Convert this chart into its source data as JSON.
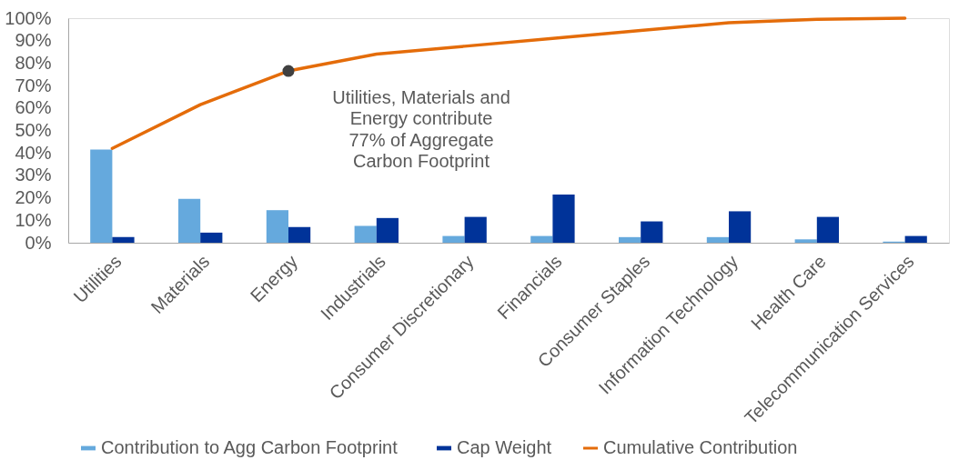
{
  "chart_data": {
    "type": "bar",
    "categories": [
      "Utilities",
      "Materials",
      "Energy",
      "Industrials",
      "Consumer Discretionary",
      "Financials",
      "Consumer Staples",
      "Information Technology",
      "Health Care",
      "Telecommunication Services"
    ],
    "series": [
      {
        "name": "Contribution to Agg Carbon Footprint",
        "color": "#65a9dd",
        "values": [
          41.5,
          19.5,
          14.5,
          7.5,
          3,
          3,
          2.5,
          2.5,
          1.5,
          0.5
        ]
      },
      {
        "name": "Cap Weight",
        "color": "#003399",
        "values": [
          2.5,
          4.5,
          7,
          11,
          11.5,
          21.5,
          9.5,
          14,
          11.5,
          3
        ]
      },
      {
        "name": "Cumulative Contribution",
        "type": "line",
        "color": "#e46c0a",
        "values": [
          42,
          61.5,
          76.5,
          84,
          87.5,
          91,
          94.5,
          98,
          99.5,
          100
        ]
      }
    ],
    "ylim": [
      0,
      100
    ],
    "yticks": [
      {
        "value": 0,
        "label": "0%"
      },
      {
        "value": 10,
        "label": "10%"
      },
      {
        "value": 20,
        "label": "20%"
      },
      {
        "value": 30,
        "label": "30%"
      },
      {
        "value": 40,
        "label": "40%"
      },
      {
        "value": 50,
        "label": "50%"
      },
      {
        "value": 60,
        "label": "60%"
      },
      {
        "value": 70,
        "label": "70%"
      },
      {
        "value": 80,
        "label": "80%"
      },
      {
        "value": 90,
        "label": "90%"
      },
      {
        "value": 100,
        "label": "100%"
      }
    ],
    "grid": false,
    "legend": "bottom",
    "annotations": [
      {
        "text": "Utilities, Materials and\nEnergy contribute\n77% of Aggregate\nCarbon Footprint",
        "x": "Energy",
        "y": 76.5
      }
    ]
  }
}
